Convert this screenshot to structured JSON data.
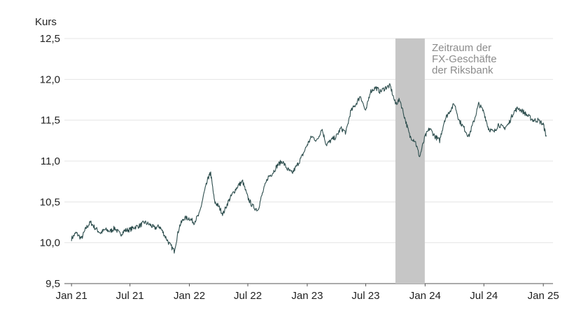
{
  "chart_data": {
    "type": "line",
    "title": "",
    "ylabel": "Kurs",
    "xlabel": "",
    "ylim": [
      9.5,
      12.5
    ],
    "y_ticks": [
      "12,5",
      "12,0",
      "11,5",
      "11,0",
      "10,5",
      "10,0",
      "9,5"
    ],
    "y_tick_values": [
      12.5,
      12.0,
      11.5,
      11.0,
      10.5,
      10.0,
      9.5
    ],
    "x_tick_labels": [
      "Jan 21",
      "Jul 21",
      "Jan 22",
      "Jul 22",
      "Jan 23",
      "Jul 23",
      "Jan 24",
      "Jul 24",
      "Jan 25"
    ],
    "x_tick_dates": [
      "2021-01-01",
      "2021-07-01",
      "2022-01-01",
      "2022-07-01",
      "2023-01-01",
      "2023-07-01",
      "2024-01-01",
      "2024-07-01",
      "2025-01-01"
    ],
    "grid": true,
    "shaded_region": {
      "start": "2023-10-01",
      "end": "2023-12-31",
      "label_lines": [
        "Zeitraum der",
        "FX-Geschäfte",
        "der Riksbank"
      ]
    },
    "series_color": "#2f4f4f",
    "shade_color": "#c6c6c6",
    "points": [
      [
        "2021-01-01",
        10.05
      ],
      [
        "2021-01-15",
        10.12
      ],
      [
        "2021-02-01",
        10.05
      ],
      [
        "2021-02-15",
        10.18
      ],
      [
        "2021-03-01",
        10.25
      ],
      [
        "2021-03-15",
        10.18
      ],
      [
        "2021-04-01",
        10.12
      ],
      [
        "2021-04-15",
        10.16
      ],
      [
        "2021-05-01",
        10.14
      ],
      [
        "2021-05-15",
        10.18
      ],
      [
        "2021-06-01",
        10.1
      ],
      [
        "2021-06-15",
        10.15
      ],
      [
        "2021-07-01",
        10.16
      ],
      [
        "2021-07-15",
        10.19
      ],
      [
        "2021-08-01",
        10.21
      ],
      [
        "2021-08-15",
        10.25
      ],
      [
        "2021-09-01",
        10.22
      ],
      [
        "2021-09-15",
        10.18
      ],
      [
        "2021-10-01",
        10.2
      ],
      [
        "2021-10-15",
        10.1
      ],
      [
        "2021-11-01",
        9.98
      ],
      [
        "2021-11-15",
        9.9
      ],
      [
        "2021-12-01",
        10.2
      ],
      [
        "2021-12-15",
        10.3
      ],
      [
        "2022-01-01",
        10.3
      ],
      [
        "2022-01-15",
        10.25
      ],
      [
        "2022-02-01",
        10.35
      ],
      [
        "2022-02-15",
        10.6
      ],
      [
        "2022-03-01",
        10.8
      ],
      [
        "2022-03-08",
        10.85
      ],
      [
        "2022-03-20",
        10.5
      ],
      [
        "2022-04-01",
        10.45
      ],
      [
        "2022-04-15",
        10.35
      ],
      [
        "2022-05-01",
        10.5
      ],
      [
        "2022-05-15",
        10.6
      ],
      [
        "2022-06-01",
        10.7
      ],
      [
        "2022-06-15",
        10.75
      ],
      [
        "2022-07-01",
        10.55
      ],
      [
        "2022-07-15",
        10.45
      ],
      [
        "2022-08-01",
        10.4
      ],
      [
        "2022-08-15",
        10.6
      ],
      [
        "2022-09-01",
        10.8
      ],
      [
        "2022-09-15",
        10.85
      ],
      [
        "2022-10-01",
        10.95
      ],
      [
        "2022-10-15",
        11.0
      ],
      [
        "2022-11-01",
        10.9
      ],
      [
        "2022-11-15",
        10.85
      ],
      [
        "2022-12-01",
        10.95
      ],
      [
        "2022-12-15",
        11.05
      ],
      [
        "2023-01-01",
        11.2
      ],
      [
        "2023-01-15",
        11.3
      ],
      [
        "2023-02-01",
        11.25
      ],
      [
        "2023-02-15",
        11.4
      ],
      [
        "2023-03-01",
        11.2
      ],
      [
        "2023-03-15",
        11.25
      ],
      [
        "2023-04-01",
        11.3
      ],
      [
        "2023-04-15",
        11.4
      ],
      [
        "2023-05-01",
        11.35
      ],
      [
        "2023-05-15",
        11.6
      ],
      [
        "2023-06-01",
        11.7
      ],
      [
        "2023-06-15",
        11.8
      ],
      [
        "2023-07-01",
        11.6
      ],
      [
        "2023-07-15",
        11.85
      ],
      [
        "2023-08-01",
        11.9
      ],
      [
        "2023-08-15",
        11.85
      ],
      [
        "2023-09-01",
        11.9
      ],
      [
        "2023-09-15",
        11.92
      ],
      [
        "2023-10-01",
        11.7
      ],
      [
        "2023-10-15",
        11.75
      ],
      [
        "2023-11-01",
        11.5
      ],
      [
        "2023-11-15",
        11.3
      ],
      [
        "2023-12-01",
        11.25
      ],
      [
        "2023-12-15",
        11.05
      ],
      [
        "2024-01-01",
        11.3
      ],
      [
        "2024-01-15",
        11.4
      ],
      [
        "2024-02-01",
        11.3
      ],
      [
        "2024-02-15",
        11.25
      ],
      [
        "2024-03-01",
        11.5
      ],
      [
        "2024-03-15",
        11.6
      ],
      [
        "2024-04-01",
        11.7
      ],
      [
        "2024-04-15",
        11.5
      ],
      [
        "2024-05-01",
        11.4
      ],
      [
        "2024-05-15",
        11.3
      ],
      [
        "2024-06-01",
        11.5
      ],
      [
        "2024-06-15",
        11.7
      ],
      [
        "2024-07-01",
        11.6
      ],
      [
        "2024-07-15",
        11.4
      ],
      [
        "2024-08-01",
        11.35
      ],
      [
        "2024-08-15",
        11.45
      ],
      [
        "2024-09-01",
        11.4
      ],
      [
        "2024-09-15",
        11.45
      ],
      [
        "2024-10-01",
        11.6
      ],
      [
        "2024-10-15",
        11.65
      ],
      [
        "2024-11-01",
        11.6
      ],
      [
        "2024-11-15",
        11.55
      ],
      [
        "2024-12-01",
        11.5
      ],
      [
        "2024-12-15",
        11.5
      ],
      [
        "2025-01-01",
        11.45
      ],
      [
        "2025-01-10",
        11.3
      ]
    ]
  }
}
